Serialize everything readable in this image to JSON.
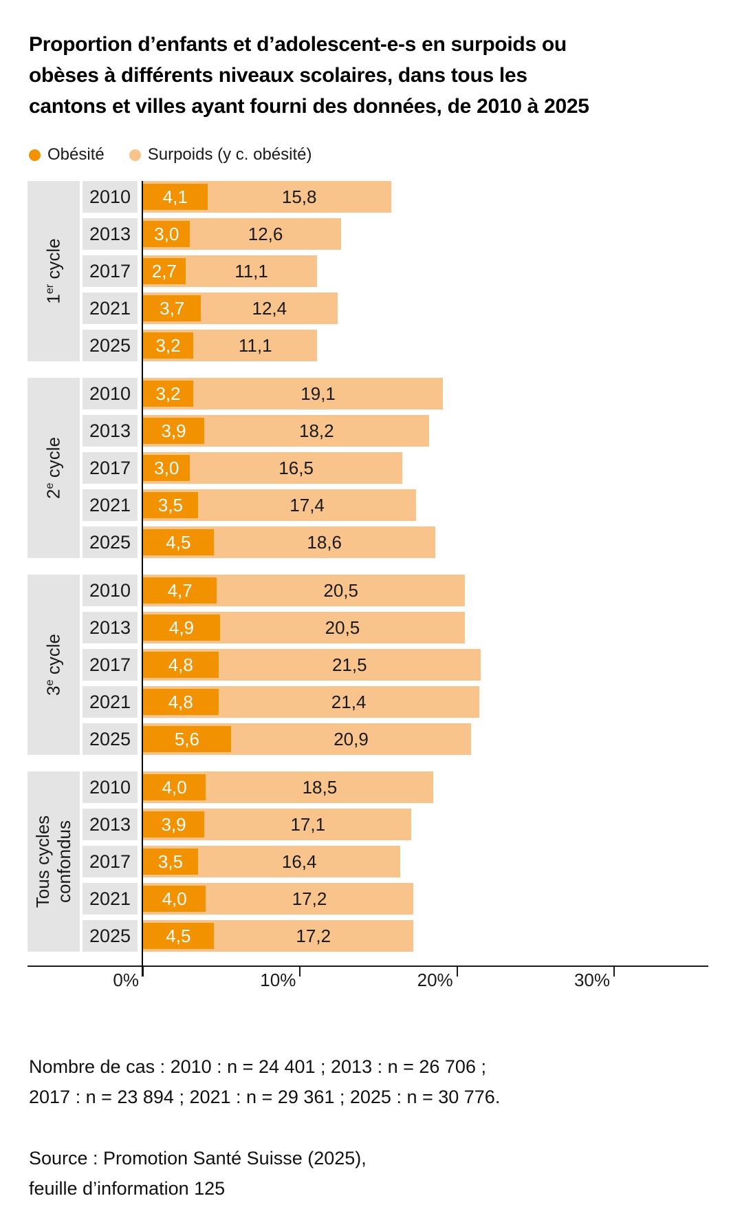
{
  "title": {
    "lines": [
      "Proportion d’enfants et d’adolescent-e-s en surpoids ou",
      "obèses à différents niveaux scolaires, dans tous les",
      "cantons et villes ayant fourni des données, de 2010 à 2025"
    ]
  },
  "legend": [
    {
      "label": "Obésité",
      "color": "#F39200"
    },
    {
      "label": "Surpoids (y c. obésité)",
      "color": "#F9C48B"
    }
  ],
  "colors": {
    "obesity": "#F39200",
    "overweight": "#F9C48B",
    "label_cell_gray": "#E3E4E3",
    "axis_black": "#1a1a1a"
  },
  "chart_data": {
    "type": "bar",
    "orientation": "horizontal",
    "unit": "%",
    "x_axis": {
      "ticks": [
        0,
        10,
        20,
        30
      ],
      "tick_labels": [
        "0%",
        "10%",
        "20%",
        "30%"
      ],
      "max": 36,
      "grid": false
    },
    "legend": [
      "Obésité",
      "Surpoids (y c. obésité)"
    ],
    "groups": [
      {
        "slug": "1er-cycle",
        "label": "1er cycle",
        "label_parts": {
          "num": "1",
          "sup": "er",
          "rest": " cycle"
        },
        "rows": [
          {
            "year": "2010",
            "obesite": 4.1,
            "obesite_label": "4,1",
            "surpoids": 15.8,
            "surpoids_label": "15,8"
          },
          {
            "year": "2013",
            "obesite": 3.0,
            "obesite_label": "3,0",
            "surpoids": 12.6,
            "surpoids_label": "12,6"
          },
          {
            "year": "2017",
            "obesite": 2.7,
            "obesite_label": "2,7",
            "surpoids": 11.1,
            "surpoids_label": "11,1"
          },
          {
            "year": "2021",
            "obesite": 3.7,
            "obesite_label": "3,7",
            "surpoids": 12.4,
            "surpoids_label": "12,4"
          },
          {
            "year": "2025",
            "obesite": 3.2,
            "obesite_label": "3,2",
            "surpoids": 11.1,
            "surpoids_label": "11,1"
          }
        ]
      },
      {
        "slug": "2e-cycle",
        "label": "2e cycle",
        "label_parts": {
          "num": "2",
          "sup": "e",
          "rest": " cycle"
        },
        "rows": [
          {
            "year": "2010",
            "obesite": 3.2,
            "obesite_label": "3,2",
            "surpoids": 19.1,
            "surpoids_label": "19,1"
          },
          {
            "year": "2013",
            "obesite": 3.9,
            "obesite_label": "3,9",
            "surpoids": 18.2,
            "surpoids_label": "18,2"
          },
          {
            "year": "2017",
            "obesite": 3.0,
            "obesite_label": "3,0",
            "surpoids": 16.5,
            "surpoids_label": "16,5"
          },
          {
            "year": "2021",
            "obesite": 3.5,
            "obesite_label": "3,5",
            "surpoids": 17.4,
            "surpoids_label": "17,4"
          },
          {
            "year": "2025",
            "obesite": 4.5,
            "obesite_label": "4,5",
            "surpoids": 18.6,
            "surpoids_label": "18,6"
          }
        ]
      },
      {
        "slug": "3e-cycle",
        "label": "3e cycle",
        "label_parts": {
          "num": "3",
          "sup": "e",
          "rest": " cycle"
        },
        "rows": [
          {
            "year": "2010",
            "obesite": 4.7,
            "obesite_label": "4,7",
            "surpoids": 20.5,
            "surpoids_label": "20,5"
          },
          {
            "year": "2013",
            "obesite": 4.9,
            "obesite_label": "4,9",
            "surpoids": 20.5,
            "surpoids_label": "20,5"
          },
          {
            "year": "2017",
            "obesite": 4.8,
            "obesite_label": "4,8",
            "surpoids": 21.5,
            "surpoids_label": "21,5"
          },
          {
            "year": "2021",
            "obesite": 4.8,
            "obesite_label": "4,8",
            "surpoids": 21.4,
            "surpoids_label": "21,4"
          },
          {
            "year": "2025",
            "obesite": 5.6,
            "obesite_label": "5,6",
            "surpoids": 20.9,
            "surpoids_label": "20,9"
          }
        ]
      },
      {
        "slug": "tous-cycles-confondus",
        "label": "Tous cycles confondus",
        "label_lines": [
          "Tous cycles",
          "confondus"
        ],
        "rows": [
          {
            "year": "2010",
            "obesite": 4.0,
            "obesite_label": "4,0",
            "surpoids": 18.5,
            "surpoids_label": "18,5"
          },
          {
            "year": "2013",
            "obesite": 3.9,
            "obesite_label": "3,9",
            "surpoids": 17.1,
            "surpoids_label": "17,1"
          },
          {
            "year": "2017",
            "obesite": 3.5,
            "obesite_label": "3,5",
            "surpoids": 16.4,
            "surpoids_label": "16,4"
          },
          {
            "year": "2021",
            "obesite": 4.0,
            "obesite_label": "4,0",
            "surpoids": 17.2,
            "surpoids_label": "17,2"
          },
          {
            "year": "2025",
            "obesite": 4.5,
            "obesite_label": "4,5",
            "surpoids": 17.2,
            "surpoids_label": "17,2"
          }
        ]
      }
    ]
  },
  "notes": {
    "cases_line1": "Nombre de cas : 2010 : n = 24 401 ; 2013 : n = 26 706 ;",
    "cases_line2": "2017 : n = 23 894 ; 2021 : n = 29 361 ; 2025 : n = 30 776.",
    "source_line1": "Source : Promotion Santé Suisse (2025),",
    "source_line2": "feuille d’information 125"
  }
}
